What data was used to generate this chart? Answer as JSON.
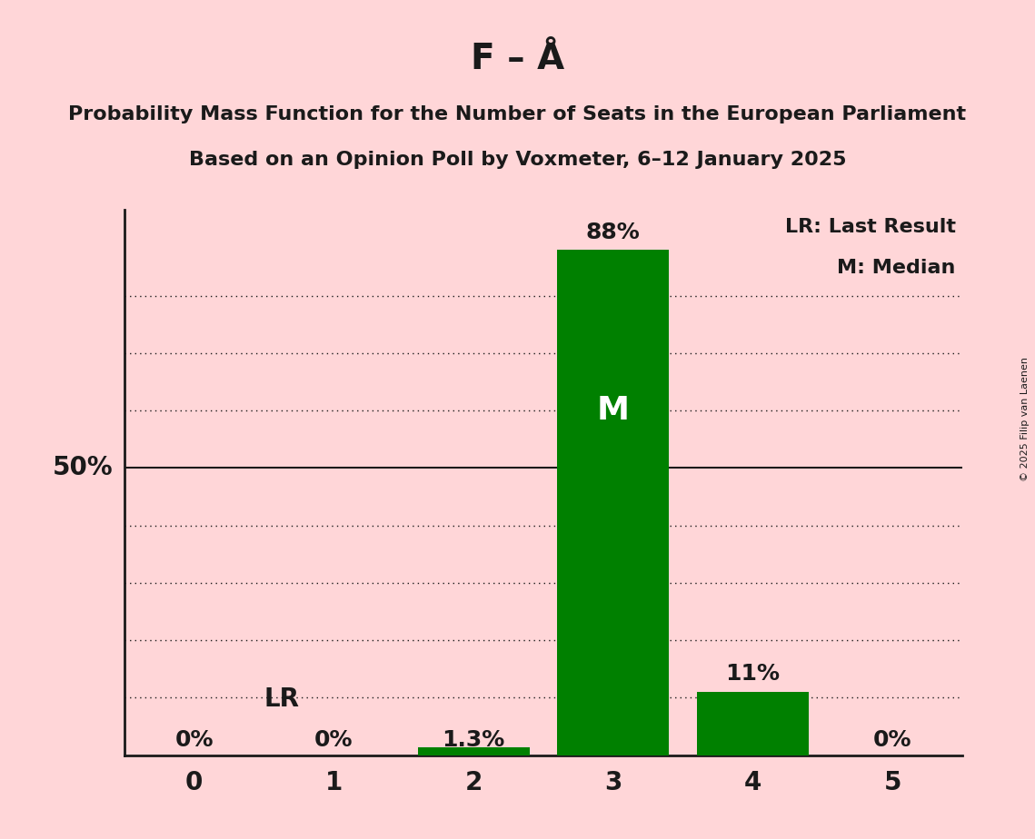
{
  "title": "F – Å",
  "subtitle_line1": "Probability Mass Function for the Number of Seats in the European Parliament",
  "subtitle_line2": "Based on an Opinion Poll by Voxmeter, 6–12 January 2025",
  "copyright": "© 2025 Filip van Laenen",
  "x_values": [
    0,
    1,
    2,
    3,
    4,
    5
  ],
  "y_values": [
    0.0,
    0.0,
    0.013,
    0.88,
    0.11,
    0.0
  ],
  "bar_labels": [
    "0%",
    "0%",
    "1.3%",
    "88%",
    "11%",
    "0%"
  ],
  "bar_color": "#008000",
  "background_color": "#FFD6D8",
  "median_bar_index": 3,
  "lr_bar_index": 2,
  "median_label": "M",
  "lr_label": "LR",
  "y50_label": "50%",
  "y_solid_line": 0.5,
  "dotted_lines": [
    0.1,
    0.2,
    0.3,
    0.4,
    0.6,
    0.7,
    0.8
  ],
  "ylim": [
    0,
    0.95
  ],
  "xlim": [
    -0.5,
    5.5
  ],
  "bar_width": 0.8,
  "legend_lr": "LR: Last Result",
  "legend_m": "M: Median",
  "title_fontsize": 28,
  "subtitle_fontsize": 16,
  "bar_label_fontsize": 18,
  "axis_tick_fontsize": 20,
  "y_label_fontsize": 20,
  "legend_fontsize": 16,
  "median_label_fontsize": 26,
  "lr_label_fontsize": 20
}
